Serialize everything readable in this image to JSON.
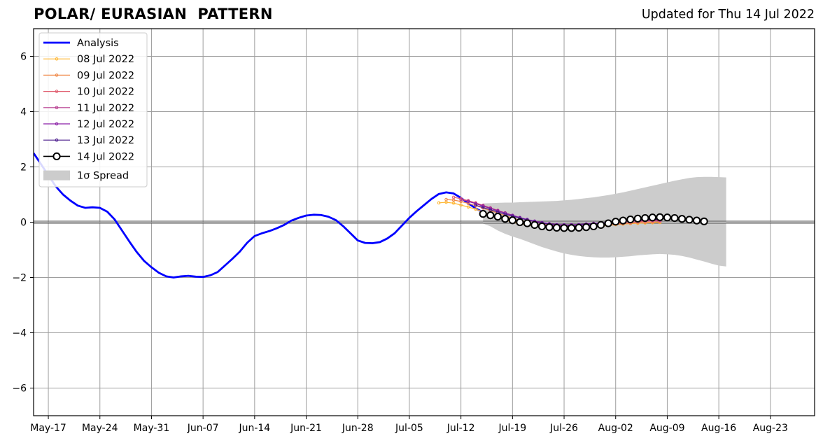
{
  "header": {
    "title": "POLAR/ EURASIAN  PATTERN",
    "subtitle": "Updated for Thu 14 Jul 2022"
  },
  "chart_data": {
    "type": "line",
    "title": "POLAR/ EURASIAN  PATTERN",
    "xlabel": "",
    "ylabel": "",
    "x_unit": "date (2022)",
    "xlim": [
      "2022-05-15",
      "2022-08-29"
    ],
    "ylim": [
      -7,
      7
    ],
    "x_ticks": [
      {
        "date": "2022-05-17",
        "label": "May-17"
      },
      {
        "date": "2022-05-24",
        "label": "May-24"
      },
      {
        "date": "2022-05-31",
        "label": "May-31"
      },
      {
        "date": "2022-06-07",
        "label": "Jun-07"
      },
      {
        "date": "2022-06-14",
        "label": "Jun-14"
      },
      {
        "date": "2022-06-21",
        "label": "Jun-21"
      },
      {
        "date": "2022-06-28",
        "label": "Jun-28"
      },
      {
        "date": "2022-07-05",
        "label": "Jul-05"
      },
      {
        "date": "2022-07-12",
        "label": "Jul-12"
      },
      {
        "date": "2022-07-19",
        "label": "Jul-19"
      },
      {
        "date": "2022-07-26",
        "label": "Jul-26"
      },
      {
        "date": "2022-08-02",
        "label": "Aug-02"
      },
      {
        "date": "2022-08-09",
        "label": "Aug-09"
      },
      {
        "date": "2022-08-16",
        "label": "Aug-16"
      },
      {
        "date": "2022-08-23",
        "label": "Aug-23"
      }
    ],
    "y_ticks": [
      -6,
      -4,
      -2,
      0,
      2,
      4,
      6
    ],
    "y_tick_labels": [
      "−6",
      "−4",
      "−2",
      "0",
      "2",
      "4",
      "6"
    ],
    "grid": true,
    "legend_position": "top-left",
    "legend": [
      "Analysis",
      "08 Jul 2022",
      "09 Jul 2022",
      "10 Jul 2022",
      "11 Jul 2022",
      "12 Jul 2022",
      "13 Jul 2022",
      "14 Jul 2022",
      "1σ Spread"
    ],
    "analysis": {
      "name": "Analysis",
      "color": "#0000ff",
      "start_date": "2022-05-15",
      "values": [
        2.5,
        2.1,
        1.7,
        1.3,
        1.0,
        0.78,
        0.6,
        0.52,
        0.54,
        0.52,
        0.38,
        0.1,
        -0.3,
        -0.7,
        -1.08,
        -1.4,
        -1.63,
        -1.83,
        -1.96,
        -2.0,
        -1.96,
        -1.94,
        -1.97,
        -1.98,
        -1.92,
        -1.8,
        -1.56,
        -1.32,
        -1.06,
        -0.74,
        -0.5,
        -0.4,
        -0.32,
        -0.22,
        -0.1,
        0.06,
        0.16,
        0.24,
        0.27,
        0.26,
        0.2,
        0.08,
        -0.14,
        -0.4,
        -0.66,
        -0.75,
        -0.76,
        -0.72,
        -0.59,
        -0.4,
        -0.12,
        0.16,
        0.4,
        0.62,
        0.84,
        1.02,
        1.08,
        1.04,
        0.88,
        0.68,
        0.5,
        0.36
      ]
    },
    "forecasts": [
      {
        "name": "08 Jul 2022",
        "color": "#ffb733",
        "start_date": "2022-07-09",
        "values": [
          0.7,
          0.72,
          0.69,
          0.62,
          0.55,
          0.47,
          0.38,
          0.28,
          0.18,
          0.08,
          0.0,
          -0.06,
          -0.1,
          -0.14,
          -0.17,
          -0.19,
          -0.21,
          -0.22,
          -0.22,
          -0.21,
          -0.2,
          -0.17,
          -0.14,
          -0.12,
          -0.09,
          -0.07,
          -0.05,
          -0.04,
          -0.03,
          -0.02,
          -0.01
        ]
      },
      {
        "name": "09 Jul 2022",
        "color": "#f08a4b",
        "start_date": "2022-07-10",
        "values": [
          0.82,
          0.8,
          0.75,
          0.68,
          0.6,
          0.51,
          0.42,
          0.33,
          0.24,
          0.15,
          0.07,
          0.0,
          -0.06,
          -0.1,
          -0.13,
          -0.15,
          -0.17,
          -0.18,
          -0.18,
          -0.17,
          -0.15,
          -0.13,
          -0.1,
          -0.08,
          -0.06,
          -0.04,
          -0.02,
          -0.01,
          0.0,
          0.01
        ]
      },
      {
        "name": "10 Jul 2022",
        "color": "#e05c6e",
        "start_date": "2022-07-11",
        "values": [
          0.9,
          0.85,
          0.78,
          0.7,
          0.61,
          0.52,
          0.43,
          0.34,
          0.25,
          0.16,
          0.08,
          0.01,
          -0.05,
          -0.09,
          -0.12,
          -0.14,
          -0.15,
          -0.15,
          -0.14,
          -0.12,
          -0.1,
          -0.08,
          -0.05,
          -0.03,
          -0.01,
          0.01,
          0.03,
          0.04,
          0.05
        ]
      },
      {
        "name": "11 Jul 2022",
        "color": "#b63a8e",
        "start_date": "2022-07-12",
        "values": [
          0.82,
          0.76,
          0.68,
          0.6,
          0.51,
          0.42,
          0.33,
          0.24,
          0.16,
          0.08,
          0.02,
          -0.03,
          -0.07,
          -0.1,
          -0.11,
          -0.11,
          -0.1,
          -0.08,
          -0.06,
          -0.03,
          -0.01,
          0.01,
          0.03,
          0.04,
          0.05,
          0.06,
          0.07,
          0.07
        ]
      },
      {
        "name": "12 Jul 2022",
        "color": "#8a1fa6",
        "start_date": "2022-07-13",
        "values": [
          0.75,
          0.67,
          0.58,
          0.5,
          0.41,
          0.33,
          0.25,
          0.17,
          0.1,
          0.04,
          -0.01,
          -0.05,
          -0.08,
          -0.09,
          -0.09,
          -0.08,
          -0.06,
          -0.04,
          -0.02,
          0.0,
          0.02,
          0.04,
          0.05,
          0.06,
          0.07,
          0.08,
          0.08
        ]
      },
      {
        "name": "13 Jul 2022",
        "color": "#4a1a8c",
        "start_date": "2022-07-14",
        "values": [
          0.62,
          0.53,
          0.45,
          0.37,
          0.29,
          0.22,
          0.15,
          0.08,
          0.02,
          -0.03,
          -0.07,
          -0.1,
          -0.11,
          -0.11,
          -0.1,
          -0.08,
          -0.06,
          -0.03,
          0.0,
          0.03,
          0.05,
          0.07,
          0.08,
          0.09,
          0.1,
          0.1
        ]
      },
      {
        "name": "14 Jul 2022",
        "color": "#000000",
        "start_date": "2022-07-15",
        "values": [
          0.3,
          0.25,
          0.2,
          0.12,
          0.07,
          0.0,
          -0.04,
          -0.1,
          -0.15,
          -0.18,
          -0.2,
          -0.21,
          -0.21,
          -0.2,
          -0.18,
          -0.15,
          -0.1,
          -0.04,
          0.02,
          0.06,
          0.1,
          0.13,
          0.15,
          0.17,
          0.18,
          0.17,
          0.15,
          0.12,
          0.09,
          0.06,
          0.03
        ]
      }
    ],
    "spread": {
      "name": "1σ Spread",
      "color": "#cccccc",
      "start_date": "2022-07-15",
      "upper": [
        0.68,
        0.69,
        0.7,
        0.71,
        0.71,
        0.72,
        0.73,
        0.74,
        0.75,
        0.76,
        0.77,
        0.79,
        0.81,
        0.84,
        0.87,
        0.9,
        0.94,
        0.98,
        1.03,
        1.08,
        1.14,
        1.2,
        1.26,
        1.32,
        1.38,
        1.44,
        1.5,
        1.55,
        1.6,
        1.63,
        1.64,
        1.64,
        1.63,
        1.62
      ],
      "lower": [
        -0.05,
        -0.15,
        -0.3,
        -0.42,
        -0.52,
        -0.6,
        -0.7,
        -0.8,
        -0.9,
        -0.98,
        -1.06,
        -1.13,
        -1.18,
        -1.22,
        -1.25,
        -1.27,
        -1.28,
        -1.28,
        -1.27,
        -1.25,
        -1.23,
        -1.2,
        -1.18,
        -1.16,
        -1.15,
        -1.16,
        -1.18,
        -1.22,
        -1.28,
        -1.35,
        -1.42,
        -1.5,
        -1.57,
        -1.6
      ]
    }
  }
}
